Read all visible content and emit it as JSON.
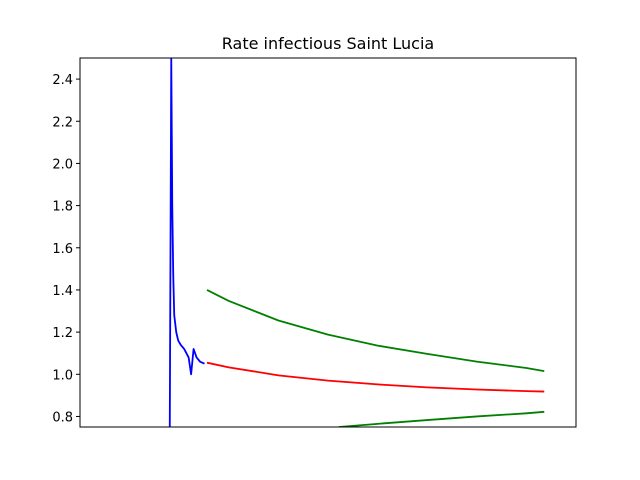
{
  "chart_data": {
    "type": "line",
    "title": "Rate infectious Saint Lucia",
    "xlabel": "",
    "ylabel": "",
    "xlim": [
      0,
      100
    ],
    "ylim": [
      0.75,
      2.5
    ],
    "y_ticks": [
      "0.8",
      "1.0",
      "1.2",
      "1.4",
      "1.6",
      "1.8",
      "2.0",
      "2.2",
      "2.4"
    ],
    "y_tick_values": [
      0.8,
      1.0,
      1.2,
      1.4,
      1.6,
      1.8,
      2.0,
      2.2,
      2.4
    ],
    "grid": false,
    "legend": "none",
    "x_ticks_visible": false,
    "series": [
      {
        "color": "#0000ff",
        "x": [
          18.1,
          18.4,
          18.6,
          18.8,
          19.0,
          19.4,
          19.8,
          20.3,
          21.0,
          21.9,
          22.4,
          22.9,
          23.5,
          24.2,
          25.1
        ],
        "y": [
          0.75,
          2.5,
          1.8,
          1.47,
          1.28,
          1.2,
          1.16,
          1.14,
          1.12,
          1.08,
          1.0,
          1.12,
          1.08,
          1.06,
          1.05
        ]
      },
      {
        "color": "#ff0000",
        "x": [
          25.6,
          30,
          40,
          50,
          60,
          70,
          80,
          90,
          93.6
        ],
        "y": [
          1.055,
          1.033,
          0.995,
          0.97,
          0.952,
          0.938,
          0.928,
          0.92,
          0.918
        ]
      },
      {
        "color": "#008000",
        "x": [
          25.6,
          30,
          40,
          50,
          60,
          70,
          80,
          90,
          93.6
        ],
        "y": [
          1.4,
          1.348,
          1.255,
          1.188,
          1.136,
          1.097,
          1.06,
          1.03,
          1.015
        ]
      },
      {
        "color": "#008000",
        "x": [
          52.2,
          60,
          70,
          80,
          90,
          93.6
        ],
        "y": [
          0.75,
          0.765,
          0.783,
          0.8,
          0.815,
          0.822
        ]
      }
    ]
  }
}
